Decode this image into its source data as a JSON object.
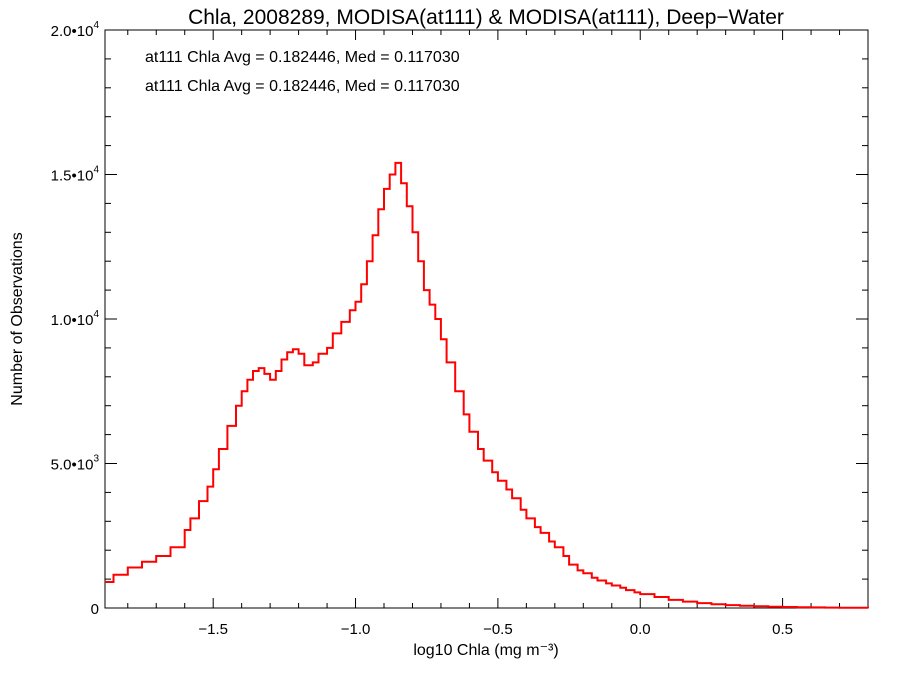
{
  "chart_data": {
    "type": "line",
    "title": "Chla, 2008289, MODISA(at111) & MODISA(at111), Deep−Water",
    "xlabel": "log10 Chla (mg m⁻³)",
    "ylabel": "Number of Observations",
    "xlim": [
      -1.88,
      0.8
    ],
    "ylim": [
      0,
      20000
    ],
    "x_ticks": [
      {
        "value": -1.5,
        "label": "−1.5"
      },
      {
        "value": -1.0,
        "label": "−1.0"
      },
      {
        "value": -0.5,
        "label": "−0.5"
      },
      {
        "value": 0.0,
        "label": "0.0"
      },
      {
        "value": 0.5,
        "label": "0.5"
      }
    ],
    "y_ticks": [
      {
        "value": 0,
        "mantissa": "0",
        "exponent": ""
      },
      {
        "value": 5000,
        "mantissa": "5.0•10",
        "exponent": "3"
      },
      {
        "value": 10000,
        "mantissa": "1.0•10",
        "exponent": "4"
      },
      {
        "value": 15000,
        "mantissa": "1.5•10",
        "exponent": "4"
      },
      {
        "value": 20000,
        "mantissa": "2.0•10",
        "exponent": "4"
      }
    ],
    "annotations": [
      {
        "text": "at111 Chla Avg = 0.182446, Med = 0.117030",
        "color": "#000000"
      },
      {
        "text": "at111 Chla Avg = 0.182446, Med = 0.117030",
        "color": "#ff0000"
      }
    ],
    "series_color": "#ff0000",
    "step": true,
    "series": [
      {
        "points": [
          [
            -1.88,
            900
          ],
          [
            -1.85,
            1150
          ],
          [
            -1.8,
            1400
          ],
          [
            -1.75,
            1600
          ],
          [
            -1.7,
            1800
          ],
          [
            -1.65,
            2100
          ],
          [
            -1.6,
            2700
          ],
          [
            -1.58,
            3100
          ],
          [
            -1.55,
            3700
          ],
          [
            -1.52,
            4200
          ],
          [
            -1.5,
            4800
          ],
          [
            -1.48,
            5500
          ],
          [
            -1.45,
            6300
          ],
          [
            -1.42,
            7000
          ],
          [
            -1.4,
            7500
          ],
          [
            -1.38,
            7900
          ],
          [
            -1.36,
            8200
          ],
          [
            -1.34,
            8300
          ],
          [
            -1.32,
            8100
          ],
          [
            -1.3,
            7900
          ],
          [
            -1.28,
            8200
          ],
          [
            -1.26,
            8600
          ],
          [
            -1.24,
            8850
          ],
          [
            -1.22,
            8950
          ],
          [
            -1.2,
            8800
          ],
          [
            -1.18,
            8400
          ],
          [
            -1.15,
            8500
          ],
          [
            -1.13,
            8800
          ],
          [
            -1.1,
            9000
          ],
          [
            -1.08,
            9500
          ],
          [
            -1.05,
            9900
          ],
          [
            -1.02,
            10300
          ],
          [
            -1.0,
            10600
          ],
          [
            -0.98,
            11200
          ],
          [
            -0.96,
            12000
          ],
          [
            -0.94,
            12900
          ],
          [
            -0.92,
            13800
          ],
          [
            -0.9,
            14500
          ],
          [
            -0.88,
            15000
          ],
          [
            -0.86,
            15400
          ],
          [
            -0.84,
            14700
          ],
          [
            -0.82,
            13900
          ],
          [
            -0.8,
            13000
          ],
          [
            -0.78,
            12000
          ],
          [
            -0.76,
            11000
          ],
          [
            -0.74,
            10500
          ],
          [
            -0.72,
            10000
          ],
          [
            -0.7,
            9300
          ],
          [
            -0.68,
            8500
          ],
          [
            -0.65,
            7500
          ],
          [
            -0.62,
            6700
          ],
          [
            -0.6,
            6100
          ],
          [
            -0.57,
            5500
          ],
          [
            -0.55,
            5100
          ],
          [
            -0.52,
            4700
          ],
          [
            -0.5,
            4400
          ],
          [
            -0.47,
            4100
          ],
          [
            -0.45,
            3800
          ],
          [
            -0.42,
            3400
          ],
          [
            -0.4,
            3100
          ],
          [
            -0.37,
            2800
          ],
          [
            -0.35,
            2600
          ],
          [
            -0.32,
            2300
          ],
          [
            -0.3,
            2100
          ],
          [
            -0.27,
            1800
          ],
          [
            -0.25,
            1500
          ],
          [
            -0.22,
            1300
          ],
          [
            -0.2,
            1200
          ],
          [
            -0.17,
            1050
          ],
          [
            -0.15,
            950
          ],
          [
            -0.12,
            850
          ],
          [
            -0.1,
            780
          ],
          [
            -0.07,
            700
          ],
          [
            -0.05,
            620
          ],
          [
            -0.02,
            540
          ],
          [
            0.0,
            480
          ],
          [
            0.05,
            380
          ],
          [
            0.1,
            280
          ],
          [
            0.15,
            220
          ],
          [
            0.2,
            170
          ],
          [
            0.25,
            130
          ],
          [
            0.3,
            100
          ],
          [
            0.35,
            80
          ],
          [
            0.4,
            60
          ],
          [
            0.45,
            45
          ],
          [
            0.5,
            35
          ],
          [
            0.55,
            25
          ],
          [
            0.6,
            20
          ],
          [
            0.65,
            15
          ],
          [
            0.7,
            10
          ],
          [
            0.75,
            8
          ],
          [
            0.8,
            5
          ]
        ]
      }
    ]
  }
}
